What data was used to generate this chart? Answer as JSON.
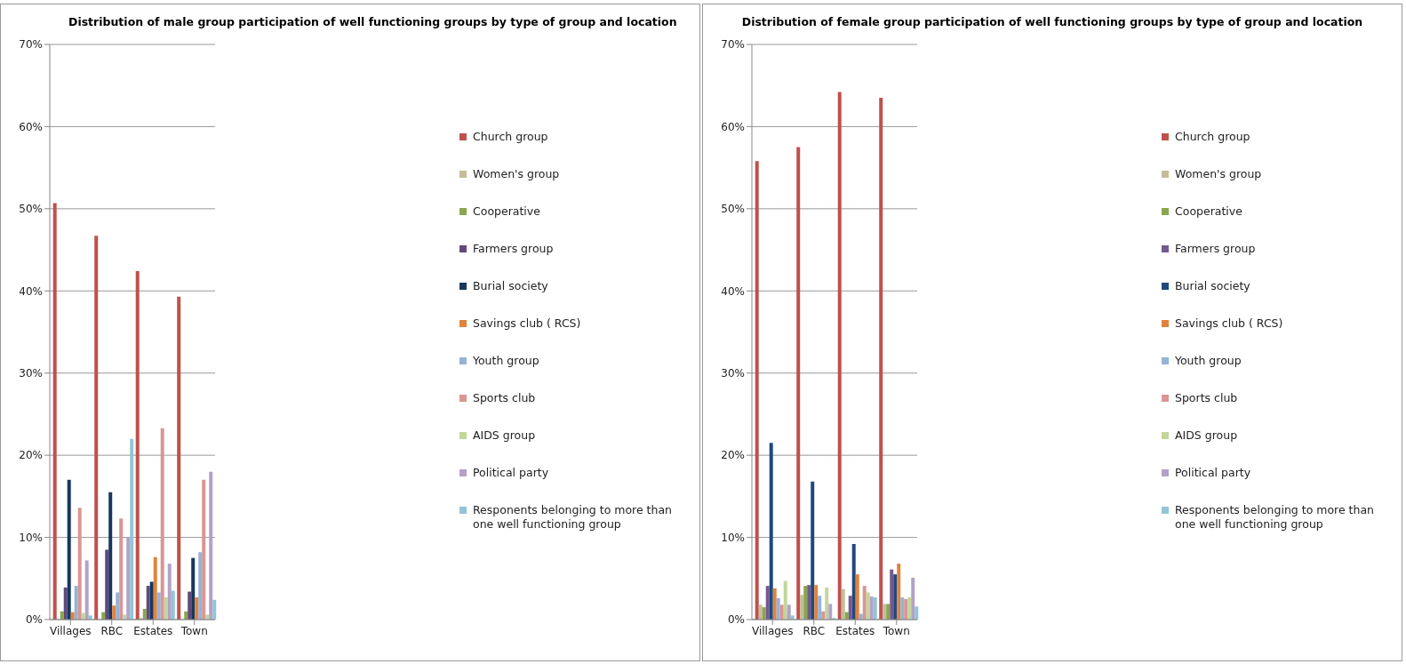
{
  "chart_data": [
    {
      "type": "bar",
      "title": "Distribution of male group participation of well functioning groups by type of group and location",
      "categories": [
        "Villages",
        "RBC",
        "Estates",
        "Town"
      ],
      "ylim": [
        0,
        70
      ],
      "yticks": [
        {
          "value": 0,
          "label": "0%"
        },
        {
          "value": 10,
          "label": "10%"
        },
        {
          "value": 20,
          "label": "20%"
        },
        {
          "value": 30,
          "label": "30%"
        },
        {
          "value": 40,
          "label": "40%"
        },
        {
          "value": 50,
          "label": "50%"
        },
        {
          "value": 60,
          "label": "60%"
        },
        {
          "value": 70,
          "label": "70%"
        }
      ],
      "grid": "y",
      "legend": "right",
      "series": [
        {
          "name": "Church group",
          "color": "#c0504d",
          "values": [
            50.7,
            46.7,
            42.4,
            39.3
          ]
        },
        {
          "name": "Women's group",
          "color": "#c4bd97",
          "values": [
            0,
            0,
            0.2,
            0
          ]
        },
        {
          "name": "Cooperative",
          "color": "#8aa64f",
          "values": [
            1.0,
            0.9,
            1.3,
            1.0
          ]
        },
        {
          "name": "Farmers group",
          "color": "#604a7b",
          "values": [
            3.9,
            8.5,
            4.1,
            3.4
          ]
        },
        {
          "name": "Burial society",
          "color": "#17375e",
          "values": [
            17.0,
            15.5,
            4.6,
            7.5
          ]
        },
        {
          "name": "Savings club ( RCS)",
          "color": "#e0833c",
          "values": [
            0.9,
            1.7,
            7.6,
            2.7
          ]
        },
        {
          "name": "Youth group",
          "color": "#95b3d7",
          "values": [
            4.1,
            3.3,
            3.3,
            8.2
          ]
        },
        {
          "name": "Sports club",
          "color": "#d99694",
          "values": [
            13.6,
            12.3,
            23.3,
            17.0
          ]
        },
        {
          "name": "AIDS group",
          "color": "#c3d69b",
          "values": [
            0.8,
            0.6,
            2.7,
            0.6
          ]
        },
        {
          "name": "Political party",
          "color": "#b3a2c7",
          "values": [
            7.2,
            10.0,
            6.8,
            18.0
          ]
        },
        {
          "name": "Responents  belonging to more than one well functioning group",
          "color": "#93c5d6",
          "values": [
            0.5,
            22.0,
            3.5,
            2.4
          ]
        }
      ]
    },
    {
      "type": "bar",
      "title": "Distribution of female  group participation of well functioning groups by type of group and location",
      "categories": [
        "Villages",
        "RBC",
        "Estates",
        "Town"
      ],
      "ylim": [
        0,
        70
      ],
      "yticks": [
        {
          "value": 0,
          "label": "0%"
        },
        {
          "value": 10,
          "label": "10%"
        },
        {
          "value": 20,
          "label": "20%"
        },
        {
          "value": 30,
          "label": "30%"
        },
        {
          "value": 40,
          "label": "40%"
        },
        {
          "value": 50,
          "label": "50%"
        },
        {
          "value": 60,
          "label": "60%"
        },
        {
          "value": 70,
          "label": "70%"
        }
      ],
      "grid": "y",
      "legend": "right",
      "series": [
        {
          "name": "Church group",
          "color": "#c0504d",
          "values": [
            55.8,
            57.5,
            64.2,
            63.5
          ]
        },
        {
          "name": "Women's group",
          "color": "#c4bd97",
          "values": [
            1.8,
            3.0,
            3.7,
            1.9
          ]
        },
        {
          "name": "Cooperative",
          "color": "#8aa64f",
          "values": [
            1.5,
            4.1,
            0.9,
            1.9
          ]
        },
        {
          "name": "Farmers group",
          "color": "#735a91",
          "values": [
            4.1,
            4.2,
            2.9,
            6.1
          ]
        },
        {
          "name": "Burial society",
          "color": "#1f497d",
          "values": [
            21.5,
            16.8,
            9.2,
            5.5
          ]
        },
        {
          "name": "Savings club ( RCS)",
          "color": "#e0833c",
          "values": [
            3.8,
            4.2,
            5.5,
            6.8
          ]
        },
        {
          "name": "Youth group",
          "color": "#95b3d7",
          "values": [
            2.6,
            2.9,
            0.7,
            2.7
          ]
        },
        {
          "name": "Sports club",
          "color": "#d99694",
          "values": [
            1.8,
            1.0,
            4.1,
            2.5
          ]
        },
        {
          "name": "AIDS group",
          "color": "#c3d69b",
          "values": [
            4.7,
            3.9,
            3.3,
            2.7
          ]
        },
        {
          "name": "Political party",
          "color": "#b3a2c7",
          "values": [
            1.8,
            1.9,
            2.8,
            5.1
          ]
        },
        {
          "name": "Responents  belonging to more than one well functioning group",
          "color": "#93c5d6",
          "values": [
            0.5,
            0.2,
            2.7,
            1.6
          ]
        }
      ]
    }
  ]
}
